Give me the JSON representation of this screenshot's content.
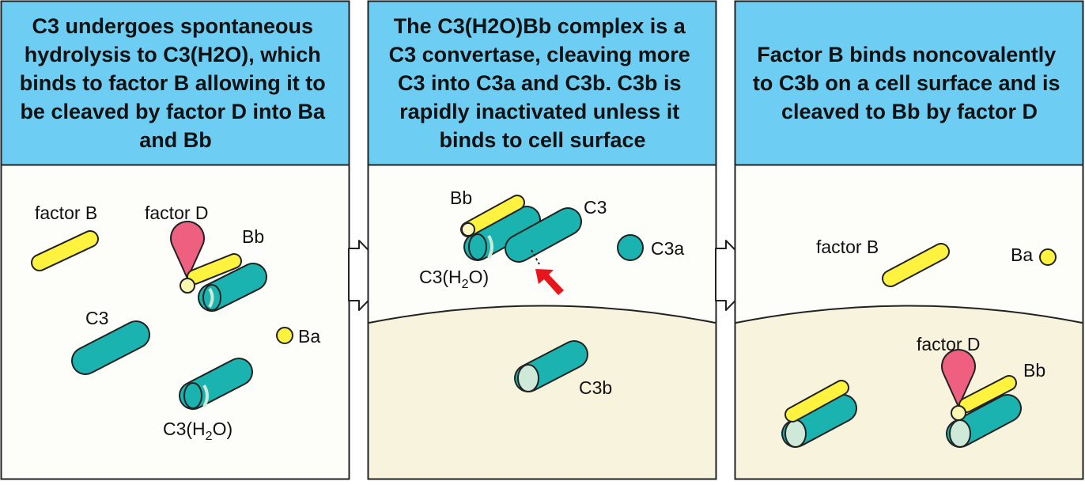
{
  "panels": [
    {
      "title_lines": [
        "C3 undergoes spontaneous",
        "hydrolysis to C3(H2O), which",
        "binds to factor B allowing it to",
        "be cleaved by factor D into Ba",
        "and Bb"
      ],
      "labels": {
        "factor_b": "factor B",
        "factor_d": "factor D",
        "bb": "Bb",
        "c3": "C3",
        "ba": "Ba",
        "c3h2o_pre": "C3(H",
        "c3h2o_sub": "2",
        "c3h2o_post": "O)"
      }
    },
    {
      "title_lines": [
        "The C3(H2O)Bb complex is a",
        "C3 convertase, cleaving more",
        "C3 into C3a and C3b. C3b is",
        "rapidly inactivated unless it",
        "binds to cell surface"
      ],
      "labels": {
        "bb": "Bb",
        "c3": "C3",
        "c3a": "C3a",
        "c3b": "C3b",
        "c3h2o_pre": "C3(H",
        "c3h2o_sub": "2",
        "c3h2o_post": "O)"
      }
    },
    {
      "title_lines": [
        "Factor B binds noncovalently",
        "to C3b on a cell surface and is",
        "cleaved to Bb by factor D"
      ],
      "labels": {
        "factor_b": "factor B",
        "ba": "Ba",
        "factor_d": "factor D",
        "bb": "Bb"
      }
    }
  ],
  "colors": {
    "header_bg": "#6dcdf3",
    "body_bg": "#fdfdf9",
    "cell_bg": "#f7f3dd",
    "c3_teal": "#1bb3b0",
    "factor_b_yellow": "#fff33f",
    "factor_d_pink": "#ef5f80",
    "c3b_face": "#cfe9d9",
    "arrow_red": "#e8151c"
  }
}
